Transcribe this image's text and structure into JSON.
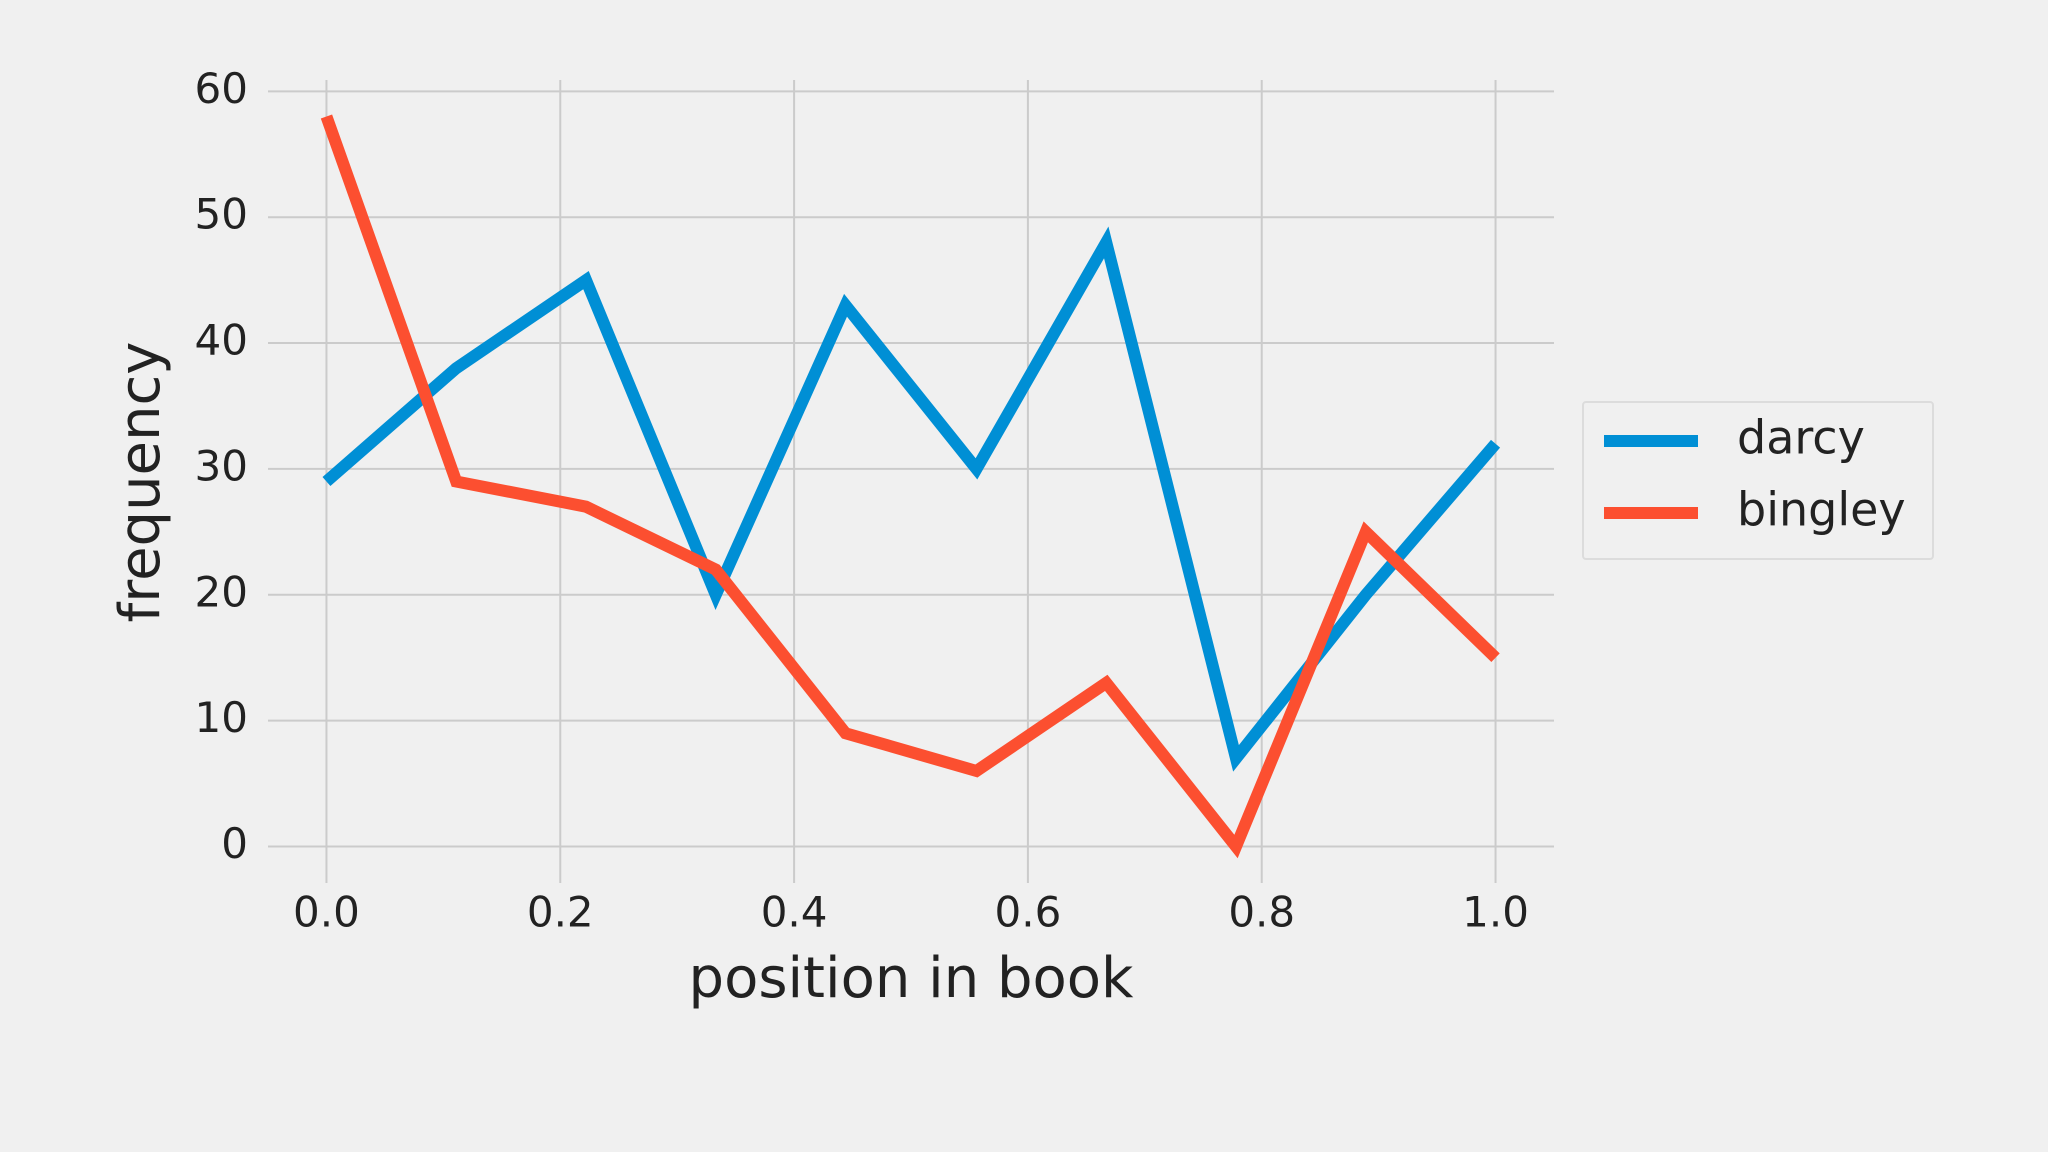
{
  "chart_data": {
    "type": "line",
    "x_label": "position in book",
    "y_label": "frequency",
    "x": [
      0,
      0.111,
      0.222,
      0.333,
      0.444,
      0.556,
      0.667,
      0.778,
      0.889,
      1.0
    ],
    "series": [
      {
        "name": "darcy",
        "color": "#008fd5",
        "values": [
          29,
          38,
          45,
          20,
          43,
          30,
          48,
          7,
          20,
          32
        ]
      },
      {
        "name": "bingley",
        "color": "#fc4f30",
        "values": [
          58,
          29,
          27,
          22,
          9,
          6,
          13,
          0,
          25,
          15
        ]
      }
    ],
    "xlim": [
      -0.05,
      1.05
    ],
    "xticks": [
      {
        "value": 0,
        "label": "0.0"
      },
      0.2,
      0.4,
      0.6,
      0.8,
      {
        "value": 1,
        "label": "1.0"
      }
    ],
    "ylim": [
      -2.9,
      60.9
    ],
    "yticks": [
      0,
      10,
      20,
      30,
      40,
      50,
      60
    ],
    "grid": true,
    "legend": "right"
  }
}
